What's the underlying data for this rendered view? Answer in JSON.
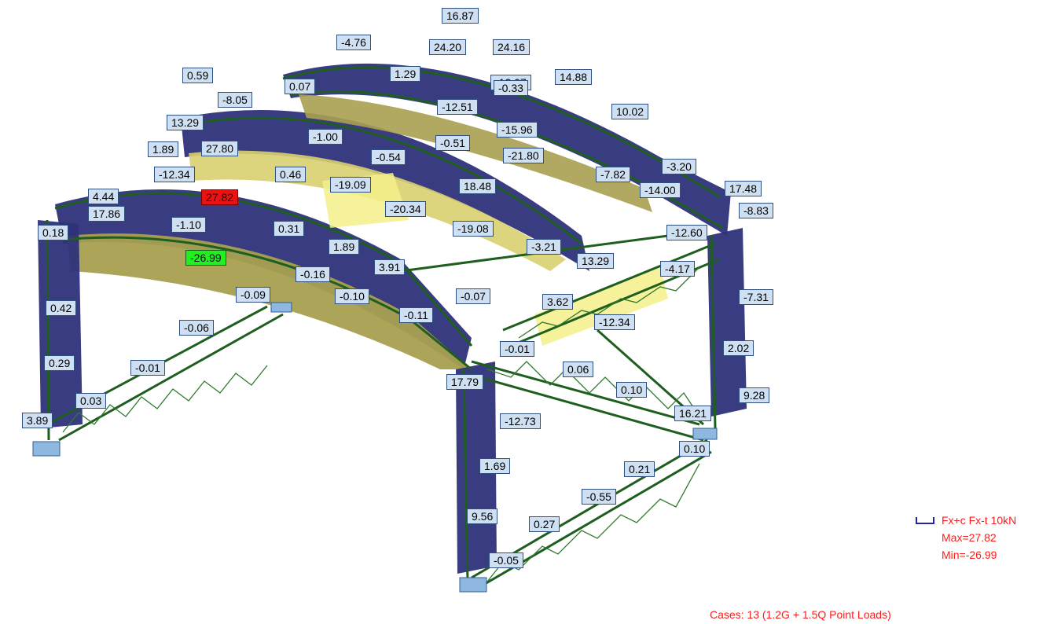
{
  "labels": [
    "16.87",
    "-4.76",
    "24.20",
    "24.16",
    "0.59",
    "1.29",
    "0.07",
    "-12.07",
    "14.88",
    "-8.05",
    "-0.33",
    "-12.51",
    "10.02",
    "13.29",
    "-15.96",
    "-1.00",
    "1.89",
    "27.80",
    "-0.51",
    "-21.80",
    "-0.54",
    "-3.20",
    "-12.34",
    "0.46",
    "-7.82",
    "-14.00",
    "17.48",
    "4.44",
    "-19.09",
    "18.48",
    "27.82",
    "-8.83",
    "17.86",
    "-20.34",
    "-1.10",
    "-12.60",
    "0.18",
    "0.31",
    "-19.08",
    "-3.21",
    "-26.99",
    "1.89",
    "13.29",
    "3.91",
    "-4.17",
    "-0.16",
    "-0.09",
    "-0.10",
    "-0.07",
    "-7.31",
    "0.42",
    "-0.11",
    "3.62",
    "-12.34",
    "-0.06",
    "-0.01",
    "2.02",
    "0.29",
    "0.06",
    "-0.01",
    "17.79",
    "0.10",
    "9.28",
    "0.03",
    "16.21",
    "-12.73",
    "3.89",
    "0.10",
    "1.69",
    "0.21",
    "-0.55",
    "9.56",
    "0.27",
    "-0.05"
  ],
  "legend": {
    "line1": "Fx+c Fx-t  10kN",
    "max": "Max=27.82",
    "min": "Min=-26.99"
  },
  "cases": "Cases: 13 (1.2G + 1.5Q Point Loads)",
  "colors": {
    "compression_fill": "#2e327a",
    "tension_fill": "#b8b04e",
    "truss_member": "#1e5e1e",
    "label_bg": "#cfe0f3",
    "max_highlight": "#ee1111",
    "min_highlight": "#22ee22",
    "legend_text": "#ff1a1a",
    "support_block": "#8fb8e0"
  }
}
